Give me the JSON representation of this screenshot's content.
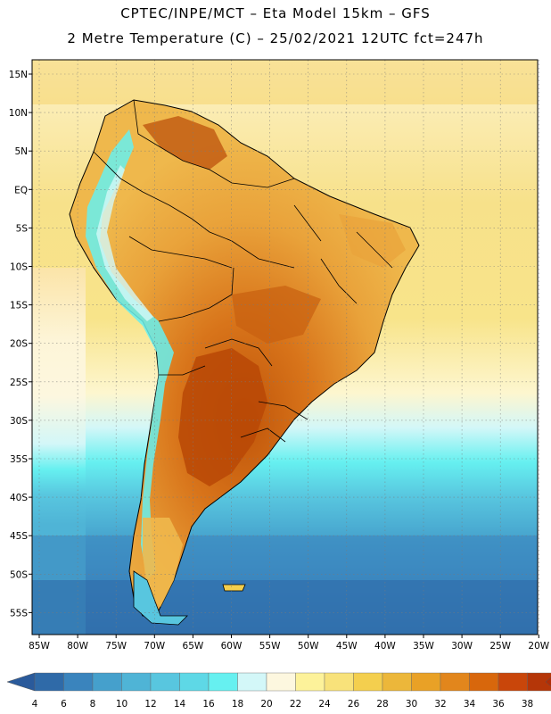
{
  "header": {
    "line1": "CPTEC/INPE/MCT –  Eta Model 15km – GFS",
    "line2": "2 Metre Temperature (C) – 25/02/2021 12UTC fct=247h"
  },
  "map": {
    "lat_labels": [
      "15N",
      "10N",
      "5N",
      "EQ",
      "5S",
      "10S",
      "15S",
      "20S",
      "25S",
      "30S",
      "35S",
      "40S",
      "45S",
      "50S",
      "55S"
    ],
    "lon_labels": [
      "85W",
      "80W",
      "75W",
      "70W",
      "65W",
      "60W",
      "55W",
      "50W",
      "45W",
      "40W",
      "35W",
      "30W",
      "25W",
      "20W"
    ],
    "lat_values": [
      15,
      10,
      5,
      0,
      -5,
      -10,
      -15,
      -20,
      -25,
      -30,
      -35,
      -40,
      -45,
      -50,
      -55
    ],
    "lon_values": [
      -85,
      -80,
      -75,
      -70,
      -65,
      -60,
      -55,
      -50,
      -45,
      -40,
      -35,
      -30,
      -25,
      -20
    ]
  },
  "colorbar": {
    "labels": [
      "4",
      "6",
      "8",
      "10",
      "12",
      "14",
      "16",
      "18",
      "20",
      "22",
      "24",
      "26",
      "28",
      "30",
      "32",
      "34",
      "36",
      "38"
    ],
    "colors": [
      "#2f6aa8",
      "#3a84bd",
      "#45a0cc",
      "#4fb4d6",
      "#58c6df",
      "#5ed8e6",
      "#66f0f0",
      "#d3f7f8",
      "#fdf7df",
      "#fdf29a",
      "#f8e27a",
      "#f4cf4e",
      "#ecb73a",
      "#e9a126",
      "#e2861c",
      "#d8670c",
      "#c9460a",
      "#b53608"
    ],
    "low_color": "#2a5a9b",
    "high_color": "#b02c06"
  },
  "colors": {
    "ocean_cold": "#2f6aa8",
    "ocean_mid": "#58c6df",
    "ocean_warm": "#f6e27c",
    "land_hot": "#c9600e",
    "land_warm": "#e6a63c",
    "andes": "#66f0f0",
    "border": "#000000"
  }
}
